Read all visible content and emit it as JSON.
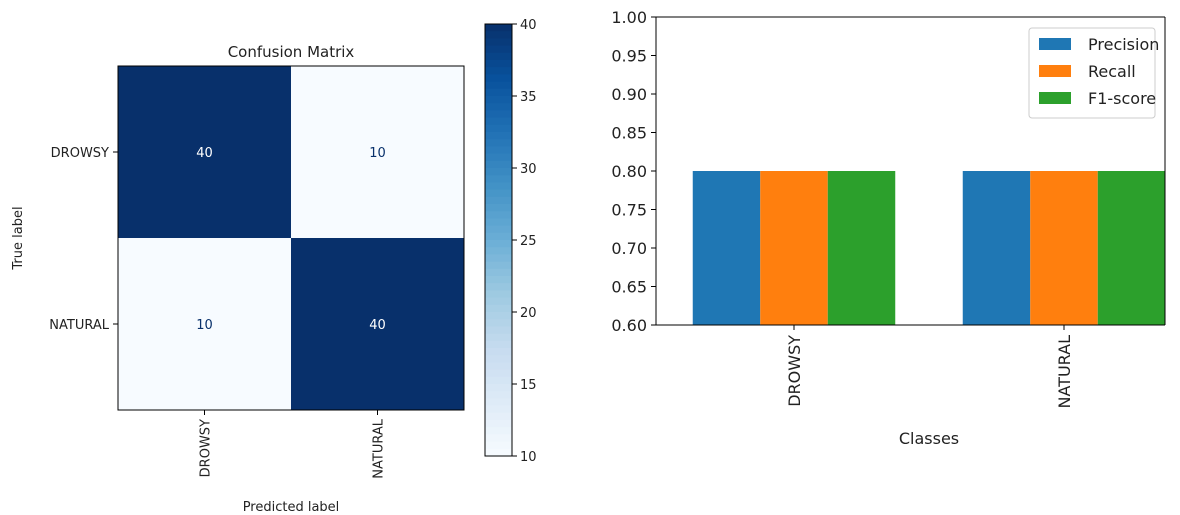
{
  "chart_data": [
    {
      "type": "heatmap",
      "title": "Confusion Matrix",
      "xlabel": "Predicted label",
      "ylabel": "True label",
      "x_categories": [
        "DROWSY",
        "NATURAL"
      ],
      "y_categories": [
        "DROWSY",
        "NATURAL"
      ],
      "matrix": [
        [
          40,
          10
        ],
        [
          10,
          40
        ]
      ],
      "cell_labels": [
        [
          "40",
          "10"
        ],
        [
          "10",
          "40"
        ]
      ],
      "colormap": "Blues",
      "colorbar": {
        "range": [
          10,
          40
        ],
        "ticks": [
          10,
          15,
          20,
          25,
          30,
          35,
          40
        ],
        "tick_labels": [
          "10",
          "15",
          "20",
          "25",
          "30",
          "35",
          "40"
        ]
      },
      "colors": {
        "low": "#f7fbff",
        "high": "#08306b",
        "dark_text": "#08306b",
        "light_text": "#ffffff"
      }
    },
    {
      "type": "bar",
      "title": "",
      "xlabel": "Classes",
      "ylabel": "",
      "categories": [
        "DROWSY",
        "NATURAL"
      ],
      "series": [
        {
          "name": "Precision",
          "values": [
            0.8,
            0.8
          ],
          "color": "#1f77b4"
        },
        {
          "name": "Recall",
          "values": [
            0.8,
            0.8
          ],
          "color": "#ff7f0e"
        },
        {
          "name": "F1-score",
          "values": [
            0.8,
            0.8
          ],
          "color": "#2ca02c"
        }
      ],
      "ylim": [
        0.6,
        1.0
      ],
      "yticks": [
        0.6,
        0.65,
        0.7,
        0.75,
        0.8,
        0.85,
        0.9,
        0.95,
        1.0
      ],
      "ytick_labels": [
        "0.60",
        "0.65",
        "0.70",
        "0.75",
        "0.80",
        "0.85",
        "0.90",
        "0.95",
        "1.00"
      ],
      "grid": false,
      "legend": "top-right"
    }
  ]
}
